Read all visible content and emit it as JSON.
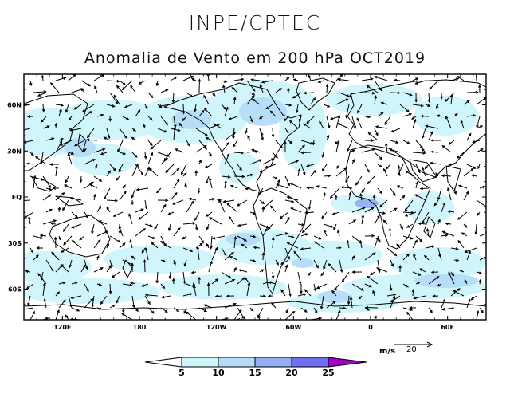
{
  "header": {
    "org": "INPE/CPTEC",
    "title": "Anomalia de Vento em 200 hPa OCT2019"
  },
  "map": {
    "projection": "equirectangular",
    "lon_range": [
      90,
      450
    ],
    "lat_range": [
      -80,
      80
    ],
    "lat_ticks": [
      {
        "lat": 60,
        "label": "60N"
      },
      {
        "lat": 30,
        "label": "30N"
      },
      {
        "lat": 0,
        "label": "EQ"
      },
      {
        "lat": -30,
        "label": "30S"
      },
      {
        "lat": -60,
        "label": "60S"
      }
    ],
    "lon_ticks": [
      {
        "lon": 120,
        "label": "120E"
      },
      {
        "lon": 180,
        "label": "180"
      },
      {
        "lon": 240,
        "label": "120W"
      },
      {
        "lon": 300,
        "label": "60W"
      },
      {
        "lon": 360,
        "label": "0"
      },
      {
        "lon": 420,
        "label": "60E"
      }
    ]
  },
  "colorbar": {
    "levels": [
      "5",
      "10",
      "15",
      "20",
      "25"
    ],
    "colors": [
      "#ffffff",
      "#cdf6fb",
      "#b4dcf8",
      "#96aef4",
      "#6f6ff0",
      "#a000c8"
    ]
  },
  "reference_vector": {
    "units": "m/s",
    "value": "20"
  }
}
